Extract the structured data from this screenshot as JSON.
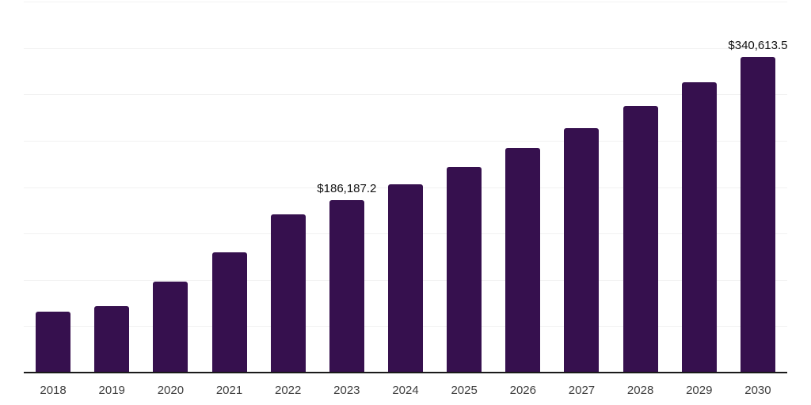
{
  "chart_data": {
    "type": "bar",
    "title": "",
    "xlabel": "",
    "ylabel": "",
    "categories": [
      "2018",
      "2019",
      "2020",
      "2021",
      "2022",
      "2023",
      "2024",
      "2025",
      "2026",
      "2027",
      "2028",
      "2029",
      "2030"
    ],
    "values": [
      65600,
      71500,
      98400,
      129900,
      170800,
      186187.2,
      203400,
      221900,
      242300,
      263600,
      287600,
      313100,
      340613.5
    ],
    "annotations": [
      {
        "category": "2023",
        "text": "$186,187.2"
      },
      {
        "category": "2030",
        "text": "$340,613.5"
      }
    ],
    "ylim": [
      0,
      400000
    ],
    "grid_step": 50000,
    "grid": true,
    "y_tick_labels_visible": false,
    "legend_position": "none",
    "colors": {
      "bar": "#36104E",
      "gridline": "#F2F2F2",
      "axis": "#1A1A1A",
      "tick_label": "#3D3D3D",
      "annotation": "#111111",
      "background": "#FFFFFF"
    }
  }
}
